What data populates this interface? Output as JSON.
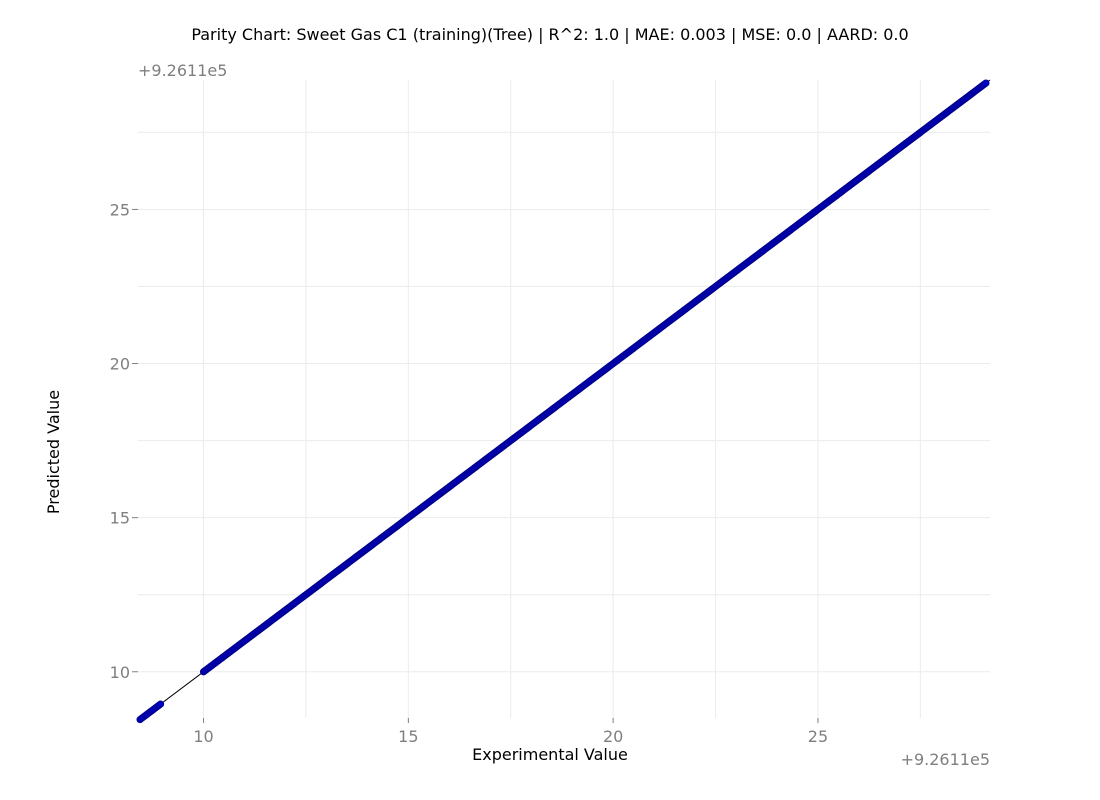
{
  "chart_data": {
    "type": "scatter",
    "title": "Parity Chart: Sweet Gas C1 (training)(Tree) | R^2: 1.0 | MAE: 0.003 | MSE: 0.0 | AARD: 0.0",
    "xlabel": "Experimental Value",
    "ylabel": "Predicted Value",
    "x_offset_label": "+9.2611e5",
    "y_offset_label": "+9.2611e5",
    "xlim": [
      8.4,
      29.2
    ],
    "ylim": [
      8.5,
      29.2
    ],
    "x_ticks": [
      10,
      15,
      20,
      25
    ],
    "x_tick_labels": [
      "10",
      "15",
      "20",
      "25"
    ],
    "y_ticks": [
      10,
      15,
      20,
      25
    ],
    "y_tick_labels": [
      "10",
      "15",
      "20",
      "25"
    ],
    "grid": true,
    "colors": {
      "points": "#0000cc",
      "parity_line": "#000000",
      "grid": "#ececec",
      "ticks": "#7f7f7f"
    },
    "parity_line": {
      "x": [
        8.4,
        29.2
      ],
      "y": [
        8.4,
        29.2
      ]
    },
    "series": [
      {
        "x": [
          8.45,
          8.55,
          8.65,
          8.75,
          8.85,
          8.95,
          10.0,
          10.15,
          10.3,
          10.45,
          10.6,
          10.75,
          10.95,
          11.1,
          11.3,
          11.5,
          11.7,
          11.9,
          12.1,
          12.3,
          12.5,
          12.7,
          12.9,
          13.1,
          13.3,
          13.5,
          13.7,
          13.9,
          14.1,
          14.3,
          14.5,
          14.7,
          14.9,
          15.1,
          15.3,
          15.5,
          15.7,
          15.9,
          16.1,
          16.3,
          16.5,
          16.7,
          16.9,
          17.1,
          17.3,
          17.5,
          17.7,
          17.9,
          18.1,
          18.3,
          18.5,
          18.7,
          18.9,
          19.1,
          19.3,
          19.5,
          19.7,
          19.9,
          20.1,
          20.3,
          20.5,
          20.7,
          20.9,
          21.1,
          21.3,
          21.5,
          21.7,
          21.9,
          22.1,
          22.3,
          22.5,
          22.7,
          22.9,
          23.1,
          23.3,
          23.5,
          23.7,
          23.9,
          24.1,
          24.3,
          24.5,
          24.7,
          24.9,
          25.1,
          25.3,
          25.5,
          25.7,
          25.9,
          26.1,
          26.3,
          26.5,
          26.7,
          26.9,
          27.1,
          27.3,
          27.5,
          27.7,
          27.9,
          28.1,
          28.3,
          28.5,
          28.7,
          28.9,
          29.1
        ],
        "y": [
          8.45,
          8.55,
          8.65,
          8.75,
          8.85,
          8.95,
          10.0,
          10.15,
          10.3,
          10.45,
          10.6,
          10.75,
          10.95,
          11.1,
          11.3,
          11.5,
          11.7,
          11.9,
          12.1,
          12.3,
          12.5,
          12.7,
          12.9,
          13.1,
          13.3,
          13.5,
          13.7,
          13.9,
          14.1,
          14.3,
          14.5,
          14.7,
          14.9,
          15.1,
          15.3,
          15.5,
          15.7,
          15.9,
          16.1,
          16.3,
          16.5,
          16.7,
          16.9,
          17.1,
          17.3,
          17.5,
          17.7,
          17.9,
          18.1,
          18.3,
          18.5,
          18.7,
          18.9,
          19.1,
          19.3,
          19.5,
          19.7,
          19.9,
          20.1,
          20.3,
          20.5,
          20.7,
          20.9,
          21.1,
          21.3,
          21.5,
          21.7,
          21.9,
          22.1,
          22.3,
          22.5,
          22.7,
          22.9,
          23.1,
          23.3,
          23.5,
          23.7,
          23.9,
          24.1,
          24.3,
          24.5,
          24.7,
          24.9,
          25.1,
          25.3,
          25.5,
          25.7,
          25.9,
          26.1,
          26.3,
          26.5,
          26.7,
          26.9,
          27.1,
          27.3,
          27.5,
          27.7,
          27.9,
          28.1,
          28.3,
          28.5,
          28.7,
          28.9,
          29.1
        ]
      }
    ]
  }
}
